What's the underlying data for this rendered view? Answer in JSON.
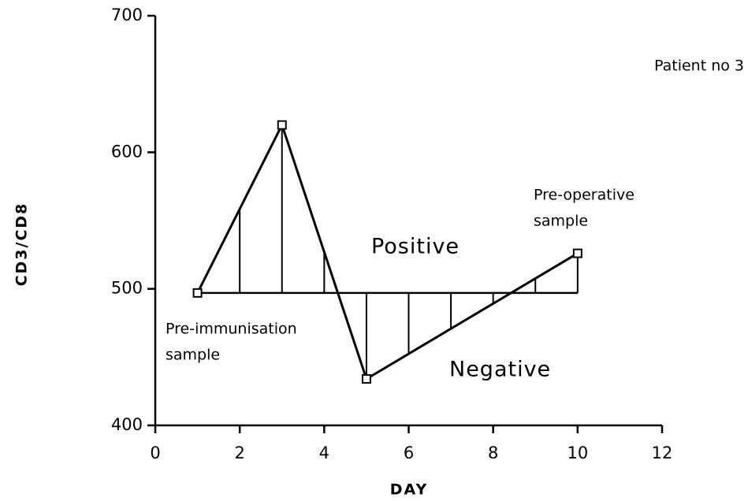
{
  "chart_data": {
    "type": "line",
    "x_label": "DAY",
    "y_label": "CD3/CD8",
    "x": [
      1,
      3,
      5,
      10
    ],
    "series": [
      {
        "color": "#000000",
        "values": [
          497,
          620,
          434,
          526
        ]
      }
    ],
    "xlim": [
      0,
      12
    ],
    "xticks": [
      0,
      2,
      4,
      6,
      8,
      10,
      12
    ],
    "ylim": [
      400,
      700
    ],
    "yticks": [
      400,
      500,
      600,
      700
    ],
    "annotations": [
      {
        "text": [
          "Patient no 3"
        ]
      },
      {
        "text": [
          "Pre-operative",
          "sample"
        ]
      },
      {
        "text": [
          "Positive"
        ]
      },
      {
        "text": [
          "Pre-immunisation",
          "sample"
        ]
      },
      {
        "text": [
          "Negative"
        ]
      }
    ]
  }
}
